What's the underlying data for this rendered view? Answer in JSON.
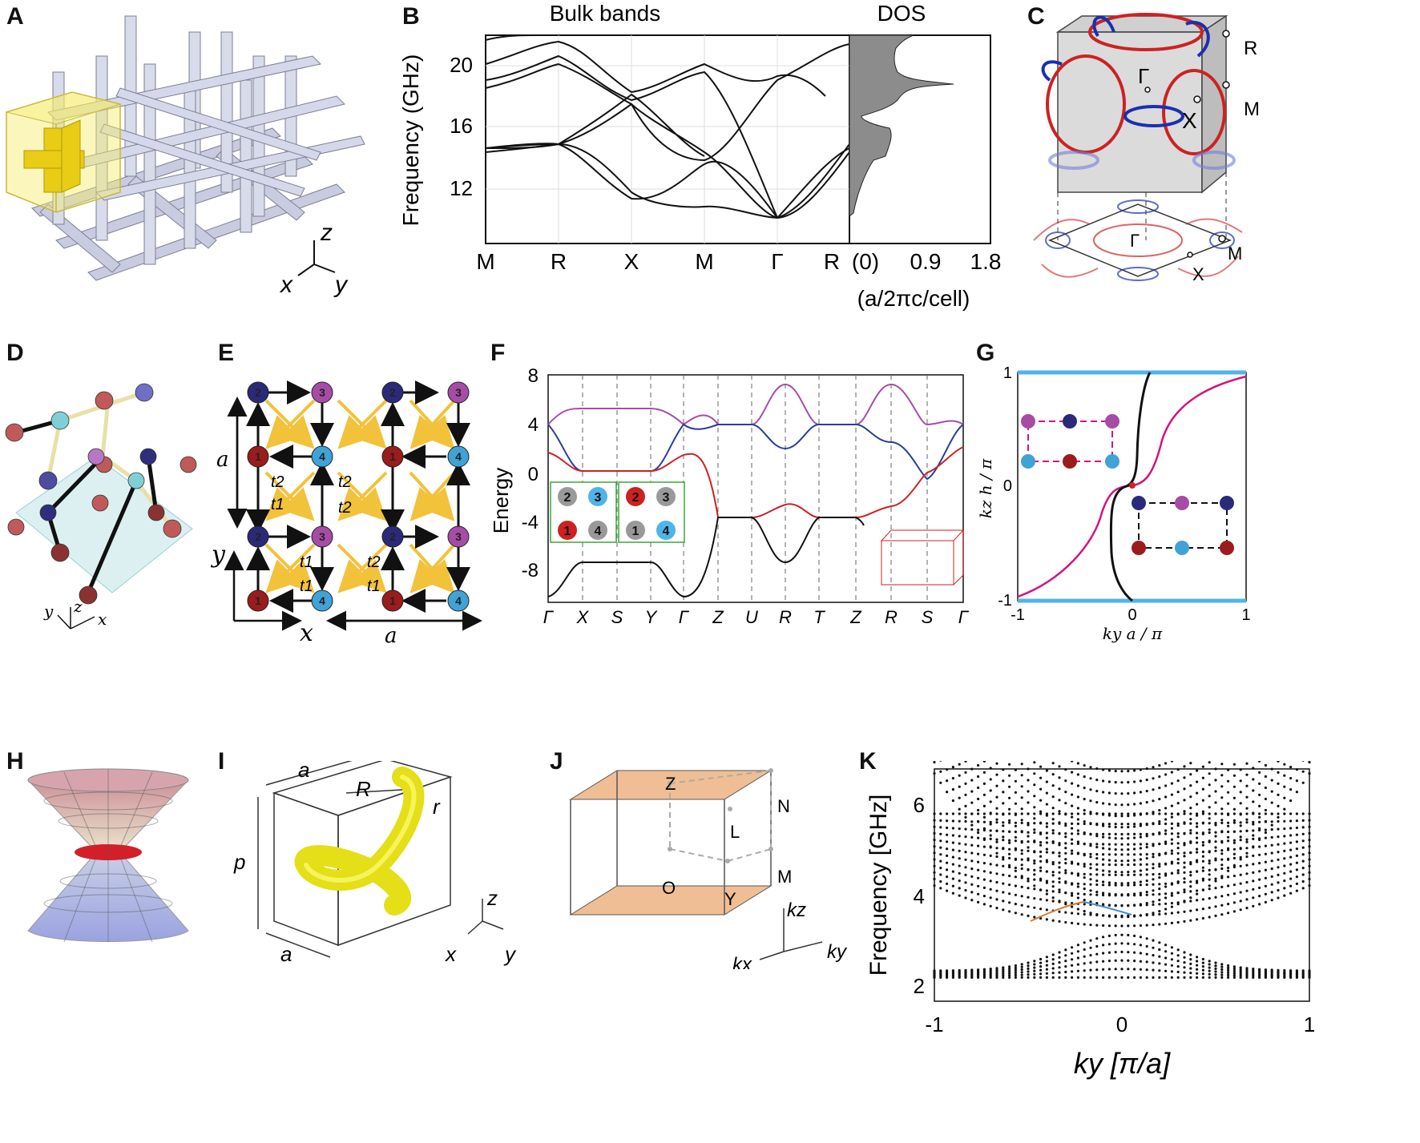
{
  "panels": {
    "A": {
      "label": "A",
      "axes": {
        "x": "x",
        "y": "y",
        "z": "z"
      }
    },
    "B": {
      "label": "B",
      "title_left": "Bulk bands",
      "title_right": "DOS",
      "ylabel": "Frequency (GHz)",
      "yticks": [
        "12",
        "16",
        "20"
      ],
      "xticks": [
        "M",
        "R",
        "X",
        "M",
        "Γ",
        "R"
      ],
      "dos_ticks": [
        "(0)",
        "0.9",
        "1.8"
      ],
      "dos_unit": "(a/2πc/cell)"
    },
    "C": {
      "label": "C",
      "points": [
        "R",
        "Γ",
        "M",
        "X",
        "Γ",
        "M",
        "X"
      ]
    },
    "D": {
      "label": "D",
      "axes": {
        "x": "x",
        "y": "y",
        "z": "z"
      }
    },
    "E": {
      "label": "E",
      "dim": "a",
      "y": "y",
      "x": "x",
      "hop1": "t1",
      "hop2": "t2",
      "sites": [
        "1",
        "2",
        "3",
        "4"
      ]
    },
    "F": {
      "label": "F",
      "ylabel": "Energy",
      "yticks": [
        "8",
        "4",
        "0",
        "-4",
        "-8"
      ],
      "xticks": [
        "Γ",
        "X",
        "S",
        "Y",
        "Γ",
        "Z",
        "U",
        "R",
        "T",
        "Z",
        "R",
        "S",
        "Γ"
      ],
      "inset_left": [
        "2",
        "3",
        "1",
        "4"
      ],
      "inset_right": [
        "2",
        "3",
        "1",
        "4"
      ]
    },
    "G": {
      "label": "G",
      "ylabel": "kz h / π",
      "xlabel": "ky a / π",
      "yticks": [
        "1",
        "0",
        "-1"
      ],
      "xticks": [
        "-1",
        "0",
        "1"
      ]
    },
    "H": {
      "label": "H"
    },
    "I": {
      "label": "I",
      "dims": [
        "a",
        "a",
        "p",
        "R",
        "r"
      ],
      "axes": {
        "x": "x",
        "y": "y",
        "z": "z"
      }
    },
    "J": {
      "label": "J",
      "points": [
        "Z",
        "N",
        "L",
        "M",
        "O",
        "Y"
      ],
      "axes": {
        "kz": "kz",
        "ky": "ky",
        "kx": "kx"
      }
    },
    "K": {
      "label": "K",
      "ylabel": "Frequency [GHz]",
      "yticks": [
        "2",
        "4",
        "6"
      ],
      "xticks": [
        "-1",
        "0",
        "1"
      ],
      "xlabel": "ky [π/a]"
    }
  },
  "colors": {
    "red": "#cc2222",
    "blue": "#2233aa",
    "purple": "#a64ca6",
    "gold": "#f2c23a",
    "magenta": "#d4137f",
    "sky": "#4fb4e8"
  }
}
